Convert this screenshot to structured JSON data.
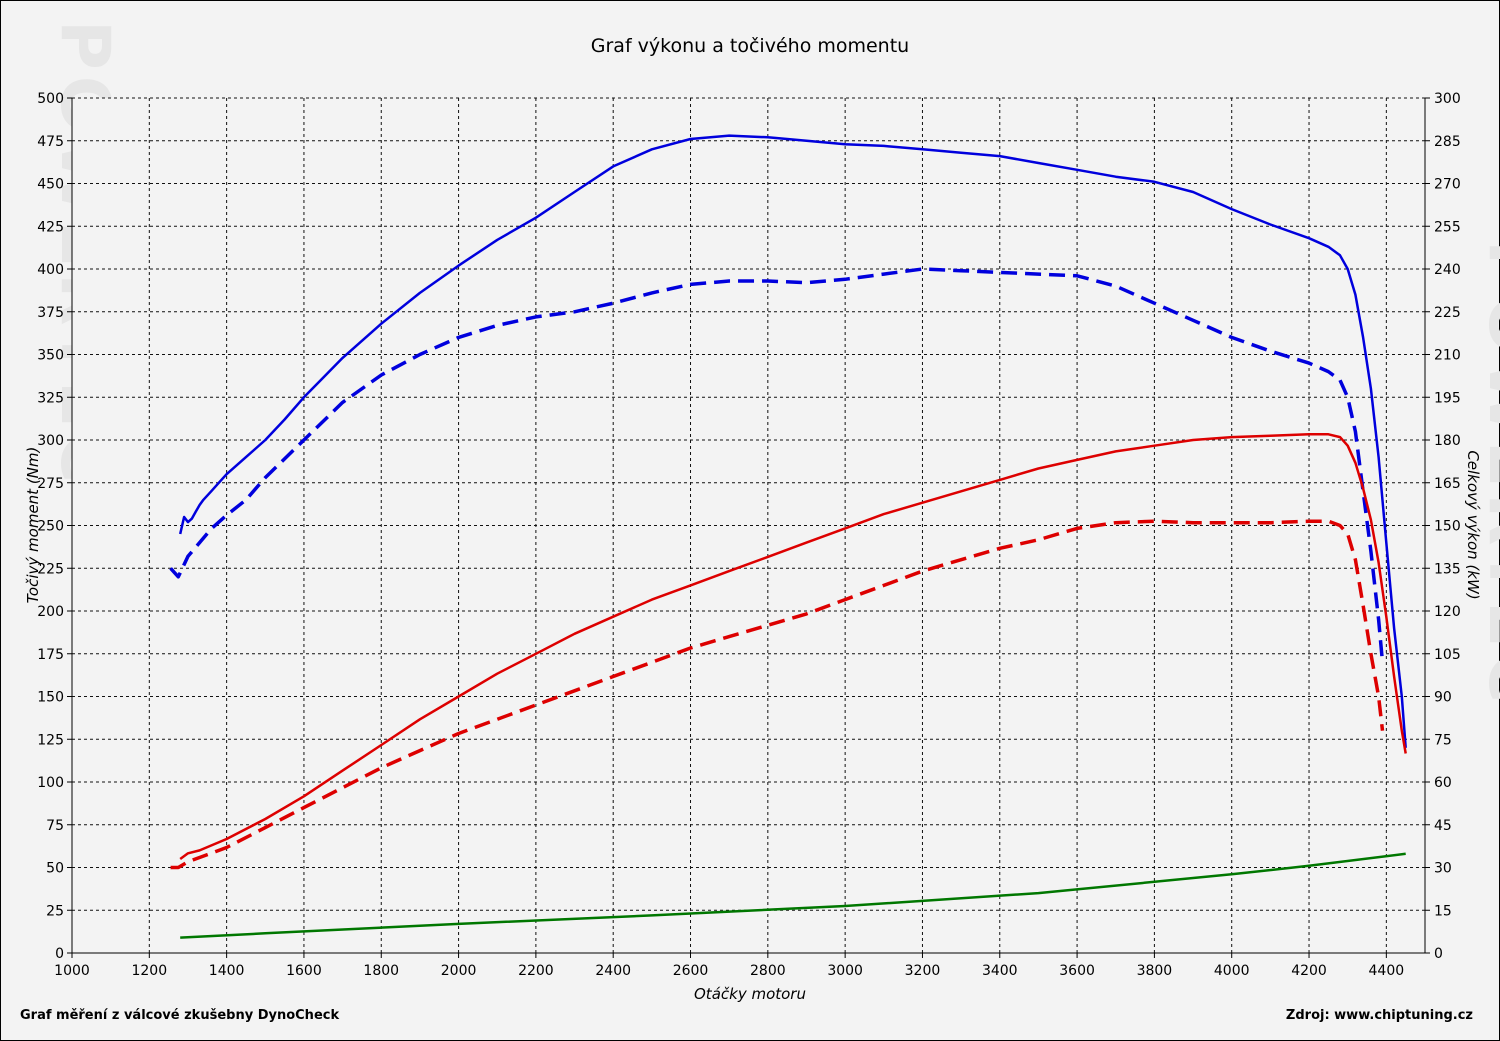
{
  "footer": {
    "left": "Graf měření z válcové zkušebny DynoCheck",
    "right": "Zdroj: www.chiptuning.cz"
  },
  "watermark": {
    "text": "WWW.CHIPTUNING.CZ",
    "side_text": "POWERTEC"
  },
  "chart_data": {
    "type": "line",
    "title": "Graf výkonu a točivého momentu",
    "xlabel": "Otáčky motoru",
    "ylabel_left": "Točivý moment (Nm)",
    "ylabel_right": "Celkový výkon (kW)",
    "xlim": [
      1000,
      4500
    ],
    "ylim_left": [
      0,
      500
    ],
    "ylim_right": [
      0,
      300
    ],
    "x_ticks": [
      1000,
      1200,
      1400,
      1600,
      1800,
      2000,
      2200,
      2400,
      2600,
      2800,
      3000,
      3200,
      3400,
      3600,
      3800,
      4000,
      4200,
      4400
    ],
    "y_ticks_left": [
      0,
      25,
      50,
      75,
      100,
      125,
      150,
      175,
      200,
      225,
      250,
      275,
      300,
      325,
      350,
      375,
      400,
      425,
      450,
      475,
      500
    ],
    "y_ticks_right": [
      0,
      15,
      30,
      45,
      60,
      75,
      90,
      105,
      120,
      135,
      150,
      165,
      180,
      195,
      210,
      225,
      240,
      255,
      270,
      285,
      300
    ],
    "grid": true,
    "series": [
      {
        "axis": "left",
        "color": "#0000dd",
        "style": "solid",
        "points": [
          [
            1280,
            245
          ],
          [
            1290,
            255
          ],
          [
            1300,
            252
          ],
          [
            1310,
            254
          ],
          [
            1320,
            258
          ],
          [
            1330,
            262
          ],
          [
            1340,
            265
          ],
          [
            1360,
            270
          ],
          [
            1380,
            275
          ],
          [
            1400,
            280
          ],
          [
            1450,
            290
          ],
          [
            1500,
            300
          ],
          [
            1550,
            312
          ],
          [
            1600,
            325
          ],
          [
            1700,
            348
          ],
          [
            1800,
            368
          ],
          [
            1900,
            386
          ],
          [
            2000,
            402
          ],
          [
            2100,
            417
          ],
          [
            2200,
            430
          ],
          [
            2300,
            445
          ],
          [
            2400,
            460
          ],
          [
            2500,
            470
          ],
          [
            2600,
            476
          ],
          [
            2700,
            478
          ],
          [
            2800,
            477
          ],
          [
            2900,
            475
          ],
          [
            3000,
            473
          ],
          [
            3100,
            472
          ],
          [
            3200,
            470
          ],
          [
            3300,
            468
          ],
          [
            3400,
            466
          ],
          [
            3500,
            462
          ],
          [
            3600,
            458
          ],
          [
            3700,
            454
          ],
          [
            3800,
            451
          ],
          [
            3900,
            445
          ],
          [
            4000,
            435
          ],
          [
            4100,
            426
          ],
          [
            4200,
            418
          ],
          [
            4250,
            413
          ],
          [
            4280,
            408
          ],
          [
            4300,
            400
          ],
          [
            4320,
            385
          ],
          [
            4340,
            360
          ],
          [
            4360,
            330
          ],
          [
            4380,
            290
          ],
          [
            4400,
            240
          ],
          [
            4420,
            190
          ],
          [
            4440,
            150
          ],
          [
            4450,
            120
          ]
        ]
      },
      {
        "axis": "left",
        "color": "#0000dd",
        "style": "dashed",
        "points": [
          [
            1255,
            225
          ],
          [
            1275,
            220
          ],
          [
            1300,
            232
          ],
          [
            1330,
            240
          ],
          [
            1360,
            248
          ],
          [
            1400,
            256
          ],
          [
            1450,
            265
          ],
          [
            1500,
            278
          ],
          [
            1600,
            300
          ],
          [
            1700,
            322
          ],
          [
            1800,
            338
          ],
          [
            1900,
            350
          ],
          [
            2000,
            360
          ],
          [
            2100,
            367
          ],
          [
            2200,
            372
          ],
          [
            2300,
            375
          ],
          [
            2400,
            380
          ],
          [
            2500,
            386
          ],
          [
            2600,
            391
          ],
          [
            2700,
            393
          ],
          [
            2800,
            393
          ],
          [
            2900,
            392
          ],
          [
            3000,
            394
          ],
          [
            3100,
            397
          ],
          [
            3200,
            400
          ],
          [
            3300,
            399
          ],
          [
            3400,
            398
          ],
          [
            3500,
            397
          ],
          [
            3600,
            396
          ],
          [
            3700,
            390
          ],
          [
            3800,
            380
          ],
          [
            3900,
            370
          ],
          [
            4000,
            360
          ],
          [
            4100,
            352
          ],
          [
            4200,
            345
          ],
          [
            4250,
            340
          ],
          [
            4280,
            335
          ],
          [
            4300,
            325
          ],
          [
            4320,
            305
          ],
          [
            4340,
            270
          ],
          [
            4360,
            235
          ],
          [
            4380,
            195
          ],
          [
            4390,
            170
          ]
        ]
      },
      {
        "axis": "right",
        "color": "#dd0000",
        "style": "solid",
        "points": [
          [
            1280,
            33
          ],
          [
            1300,
            35
          ],
          [
            1330,
            36
          ],
          [
            1400,
            40
          ],
          [
            1500,
            47
          ],
          [
            1600,
            55
          ],
          [
            1700,
            64
          ],
          [
            1800,
            73
          ],
          [
            1900,
            82
          ],
          [
            2000,
            90
          ],
          [
            2100,
            98
          ],
          [
            2200,
            105
          ],
          [
            2300,
            112
          ],
          [
            2400,
            118
          ],
          [
            2500,
            124
          ],
          [
            2600,
            129
          ],
          [
            2700,
            134
          ],
          [
            2800,
            139
          ],
          [
            2900,
            144
          ],
          [
            3000,
            149
          ],
          [
            3100,
            154
          ],
          [
            3200,
            158
          ],
          [
            3300,
            162
          ],
          [
            3400,
            166
          ],
          [
            3500,
            170
          ],
          [
            3600,
            173
          ],
          [
            3700,
            176
          ],
          [
            3800,
            178
          ],
          [
            3900,
            180
          ],
          [
            4000,
            181
          ],
          [
            4100,
            181.5
          ],
          [
            4200,
            182
          ],
          [
            4250,
            182
          ],
          [
            4280,
            181
          ],
          [
            4300,
            178
          ],
          [
            4320,
            172
          ],
          [
            4340,
            163
          ],
          [
            4360,
            152
          ],
          [
            4380,
            137
          ],
          [
            4400,
            118
          ],
          [
            4420,
            97
          ],
          [
            4440,
            78
          ],
          [
            4450,
            70
          ]
        ]
      },
      {
        "axis": "right",
        "color": "#dd0000",
        "style": "dashed",
        "points": [
          [
            1255,
            30
          ],
          [
            1275,
            30
          ],
          [
            1300,
            32
          ],
          [
            1400,
            37
          ],
          [
            1500,
            44
          ],
          [
            1600,
            51
          ],
          [
            1700,
            58
          ],
          [
            1800,
            65
          ],
          [
            1900,
            71
          ],
          [
            2000,
            77
          ],
          [
            2100,
            82
          ],
          [
            2200,
            87
          ],
          [
            2300,
            92
          ],
          [
            2400,
            97
          ],
          [
            2500,
            102
          ],
          [
            2600,
            107
          ],
          [
            2700,
            111
          ],
          [
            2800,
            115
          ],
          [
            2900,
            119
          ],
          [
            3000,
            124
          ],
          [
            3100,
            129
          ],
          [
            3200,
            134
          ],
          [
            3300,
            138
          ],
          [
            3400,
            142
          ],
          [
            3500,
            145
          ],
          [
            3600,
            149
          ],
          [
            3700,
            151
          ],
          [
            3800,
            151.5
          ],
          [
            3900,
            151
          ],
          [
            4000,
            151
          ],
          [
            4100,
            151
          ],
          [
            4200,
            151.5
          ],
          [
            4250,
            151.5
          ],
          [
            4280,
            150
          ],
          [
            4300,
            147
          ],
          [
            4320,
            138
          ],
          [
            4340,
            122
          ],
          [
            4360,
            105
          ],
          [
            4380,
            90
          ],
          [
            4390,
            78
          ]
        ]
      },
      {
        "axis": "left",
        "color": "#007700",
        "style": "solid",
        "points": [
          [
            1280,
            9
          ],
          [
            1500,
            11.5
          ],
          [
            2000,
            17
          ],
          [
            2500,
            22
          ],
          [
            3000,
            27.5
          ],
          [
            3500,
            35
          ],
          [
            4000,
            46
          ],
          [
            4200,
            51
          ],
          [
            4450,
            58
          ]
        ]
      }
    ]
  }
}
